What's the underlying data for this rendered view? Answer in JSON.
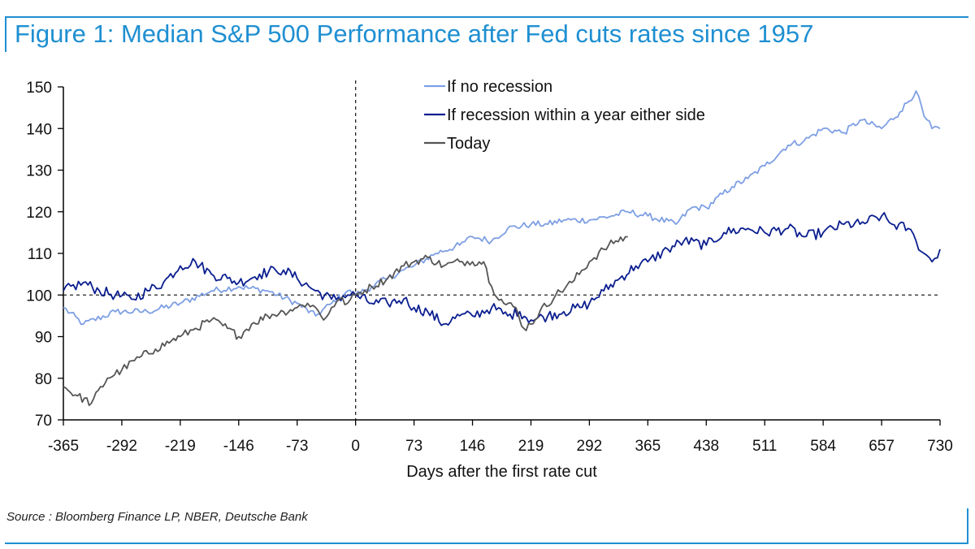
{
  "title": "Figure 1: Median S&P 500 Performance after Fed cuts rates since 1957",
  "source": "Source : Bloomberg Finance LP, NBER, Deutsche Bank",
  "colors": {
    "no_recession": "#7e9fe3",
    "recession": "#0a1e8f",
    "today": "#555555",
    "accent": "#1f8fd1"
  },
  "chart_data": {
    "type": "line",
    "title": "Figure 1: Median S&P 500 Performance after Fed cuts rates since 1957",
    "xlabel": "Days after the first rate cut",
    "ylabel": "",
    "xlim": [
      -365,
      730
    ],
    "ylim": [
      70,
      150
    ],
    "xticks": [
      -365,
      -292,
      -219,
      -146,
      -73,
      0,
      73,
      146,
      219,
      292,
      365,
      438,
      511,
      584,
      657,
      730
    ],
    "yticks": [
      70,
      80,
      90,
      100,
      110,
      120,
      130,
      140,
      150
    ],
    "reference_lines": {
      "horizontal_y": 100,
      "vertical_x": 0
    },
    "legend": {
      "position": "top-center"
    },
    "series": [
      {
        "name": "If no recession",
        "key": "no_recession",
        "points": [
          [
            -365,
            97
          ],
          [
            -340,
            93
          ],
          [
            -300,
            96
          ],
          [
            -260,
            96
          ],
          [
            -219,
            98
          ],
          [
            -180,
            101
          ],
          [
            -146,
            102
          ],
          [
            -110,
            101
          ],
          [
            -73,
            98
          ],
          [
            -50,
            95
          ],
          [
            -30,
            98
          ],
          [
            -10,
            101
          ],
          [
            0,
            100
          ],
          [
            20,
            102
          ],
          [
            40,
            104
          ],
          [
            60,
            106
          ],
          [
            73,
            107
          ],
          [
            100,
            110
          ],
          [
            130,
            112
          ],
          [
            146,
            114
          ],
          [
            170,
            113
          ],
          [
            190,
            116
          ],
          [
            219,
            117
          ],
          [
            240,
            117
          ],
          [
            260,
            118
          ],
          [
            292,
            118
          ],
          [
            320,
            119
          ],
          [
            340,
            120
          ],
          [
            365,
            119
          ],
          [
            400,
            117
          ],
          [
            420,
            121
          ],
          [
            438,
            121
          ],
          [
            470,
            126
          ],
          [
            490,
            128
          ],
          [
            511,
            131
          ],
          [
            540,
            136
          ],
          [
            560,
            137
          ],
          [
            584,
            140
          ],
          [
            610,
            139
          ],
          [
            630,
            142
          ],
          [
            657,
            140
          ],
          [
            680,
            144
          ],
          [
            700,
            149
          ],
          [
            710,
            143
          ],
          [
            720,
            140
          ],
          [
            730,
            140
          ]
        ]
      },
      {
        "name": "If recession within a year either side",
        "key": "recession",
        "points": [
          [
            -365,
            101
          ],
          [
            -340,
            103
          ],
          [
            -320,
            101
          ],
          [
            -300,
            100
          ],
          [
            -280,
            99
          ],
          [
            -260,
            101
          ],
          [
            -240,
            103
          ],
          [
            -219,
            107
          ],
          [
            -200,
            108
          ],
          [
            -180,
            105
          ],
          [
            -160,
            104
          ],
          [
            -146,
            103
          ],
          [
            -120,
            105
          ],
          [
            -100,
            106
          ],
          [
            -90,
            106
          ],
          [
            -73,
            104
          ],
          [
            -50,
            101
          ],
          [
            -30,
            99
          ],
          [
            -10,
            100
          ],
          [
            0,
            100
          ],
          [
            20,
            98
          ],
          [
            40,
            98
          ],
          [
            60,
            99
          ],
          [
            73,
            97
          ],
          [
            90,
            96
          ],
          [
            110,
            93
          ],
          [
            130,
            95
          ],
          [
            146,
            95
          ],
          [
            170,
            97
          ],
          [
            190,
            95
          ],
          [
            205,
            96
          ],
          [
            219,
            94
          ],
          [
            240,
            95
          ],
          [
            260,
            96
          ],
          [
            280,
            97
          ],
          [
            292,
            98
          ],
          [
            310,
            101
          ],
          [
            330,
            104
          ],
          [
            350,
            107
          ],
          [
            365,
            108
          ],
          [
            390,
            111
          ],
          [
            410,
            113
          ],
          [
            438,
            112
          ],
          [
            460,
            115
          ],
          [
            490,
            116
          ],
          [
            511,
            115
          ],
          [
            540,
            116
          ],
          [
            560,
            114
          ],
          [
            584,
            115
          ],
          [
            610,
            117
          ],
          [
            630,
            117
          ],
          [
            657,
            119
          ],
          [
            670,
            117
          ],
          [
            690,
            116
          ],
          [
            700,
            113
          ],
          [
            710,
            110
          ],
          [
            720,
            108
          ],
          [
            730,
            111
          ]
        ]
      },
      {
        "name": "Today",
        "key": "today",
        "points": [
          [
            -365,
            78
          ],
          [
            -350,
            76
          ],
          [
            -330,
            74
          ],
          [
            -310,
            80
          ],
          [
            -292,
            82
          ],
          [
            -270,
            85
          ],
          [
            -250,
            87
          ],
          [
            -230,
            89
          ],
          [
            -219,
            90
          ],
          [
            -200,
            92
          ],
          [
            -180,
            94
          ],
          [
            -160,
            92
          ],
          [
            -146,
            90
          ],
          [
            -130,
            93
          ],
          [
            -110,
            95
          ],
          [
            -90,
            96
          ],
          [
            -73,
            97
          ],
          [
            -60,
            98
          ],
          [
            -50,
            97
          ],
          [
            -40,
            94
          ],
          [
            -30,
            97
          ],
          [
            -20,
            99
          ],
          [
            -10,
            98
          ],
          [
            0,
            100
          ],
          [
            20,
            102
          ],
          [
            40,
            104
          ],
          [
            60,
            107
          ],
          [
            73,
            108
          ],
          [
            90,
            109
          ],
          [
            110,
            107
          ],
          [
            130,
            108
          ],
          [
            146,
            108
          ],
          [
            160,
            108
          ],
          [
            170,
            102
          ],
          [
            185,
            98
          ],
          [
            200,
            97
          ],
          [
            205,
            94
          ],
          [
            210,
            92
          ],
          [
            219,
            93
          ],
          [
            230,
            96
          ],
          [
            250,
            100
          ],
          [
            270,
            103
          ],
          [
            292,
            108
          ],
          [
            310,
            111
          ],
          [
            325,
            113
          ],
          [
            340,
            114
          ]
        ]
      }
    ]
  }
}
